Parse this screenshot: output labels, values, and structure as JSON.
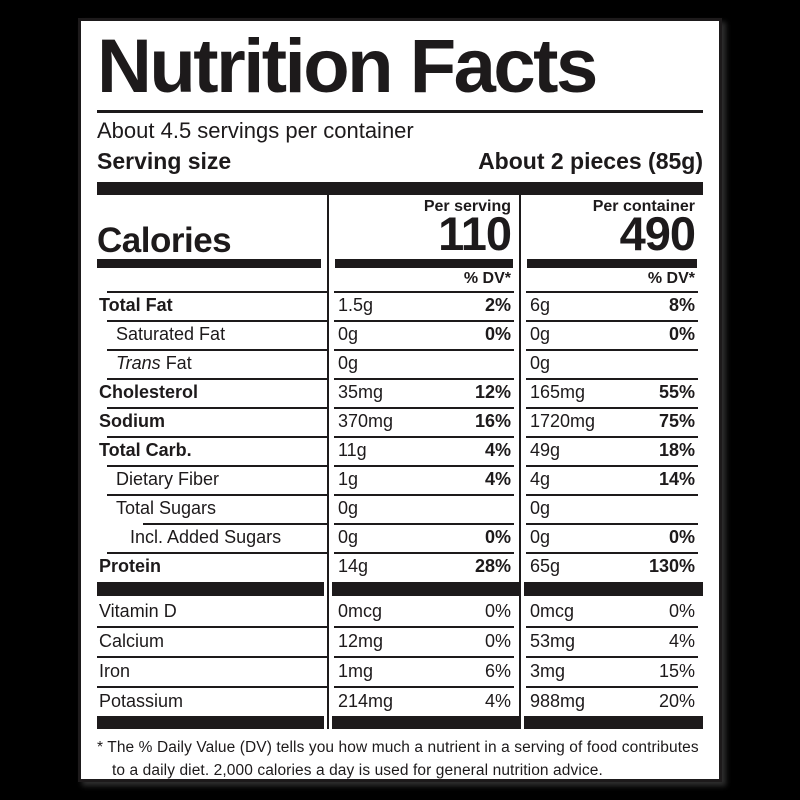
{
  "header": {
    "title": "Nutrition Facts",
    "servings_per_container": "About 4.5 servings per container",
    "serving_size_label": "Serving size",
    "serving_size_value": "About 2 pieces (85g)"
  },
  "calories": {
    "label": "Calories",
    "per_serving_label": "Per serving",
    "per_serving_value": "110",
    "per_container_label": "Per container",
    "per_container_value": "490",
    "dv_header_serving": "% DV*",
    "dv_header_container": "% DV*"
  },
  "nutrients": [
    {
      "name": "Total Fat",
      "serving_amount": "1.5g",
      "serving_dv": "2%",
      "container_amount": "6g",
      "container_dv": "8%"
    },
    {
      "name": "Saturated Fat",
      "serving_amount": "0g",
      "serving_dv": "0%",
      "container_amount": "0g",
      "container_dv": "0%"
    },
    {
      "name_italic": "Trans",
      "name": " Fat",
      "serving_amount": "0g",
      "serving_dv": "",
      "container_amount": "0g",
      "container_dv": ""
    },
    {
      "name": "Cholesterol",
      "serving_amount": "35mg",
      "serving_dv": "12%",
      "container_amount": "165mg",
      "container_dv": "55%"
    },
    {
      "name": "Sodium",
      "serving_amount": "370mg",
      "serving_dv": "16%",
      "container_amount": "1720mg",
      "container_dv": "75%"
    },
    {
      "name": "Total Carb.",
      "serving_amount": "11g",
      "serving_dv": "4%",
      "container_amount": "49g",
      "container_dv": "18%"
    },
    {
      "name": "Dietary Fiber",
      "serving_amount": "1g",
      "serving_dv": "4%",
      "container_amount": "4g",
      "container_dv": "14%"
    },
    {
      "name": "Total Sugars",
      "serving_amount": "0g",
      "serving_dv": "",
      "container_amount": "0g",
      "container_dv": ""
    },
    {
      "name": "Incl. Added Sugars",
      "serving_amount": "0g",
      "serving_dv": "0%",
      "container_amount": "0g",
      "container_dv": "0%"
    },
    {
      "name": "Protein",
      "serving_amount": "14g",
      "serving_dv": "28%",
      "container_amount": "65g",
      "container_dv": "130%"
    }
  ],
  "vitamins": [
    {
      "name": "Vitamin D",
      "serving_amount": "0mcg",
      "serving_dv": "0%",
      "container_amount": "0mcg",
      "container_dv": "0%"
    },
    {
      "name": "Calcium",
      "serving_amount": "12mg",
      "serving_dv": "0%",
      "container_amount": "53mg",
      "container_dv": "4%"
    },
    {
      "name": "Iron",
      "serving_amount": "1mg",
      "serving_dv": "6%",
      "container_amount": "3mg",
      "container_dv": "15%"
    },
    {
      "name": "Potassium",
      "serving_amount": "214mg",
      "serving_dv": "4%",
      "container_amount": "988mg",
      "container_dv": "20%"
    }
  ],
  "footnote": "* The % Daily Value (DV) tells you how much a nutrient in a serving of food contributes to a daily diet. 2,000 calories a day is used for general nutrition advice.",
  "colors": {
    "ink": "#1d1a1b",
    "label_bg": "#ffffff",
    "background": "#000000"
  }
}
